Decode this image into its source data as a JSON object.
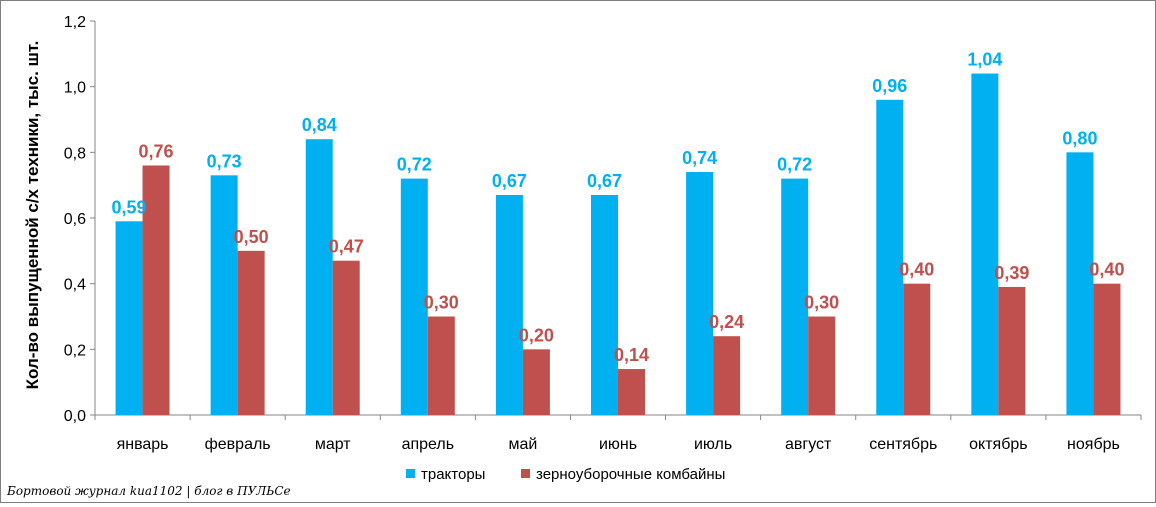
{
  "chart_data": {
    "type": "bar",
    "title": "",
    "xlabel": "",
    "ylabel": "Кол-во выпущенной с/х техники, тыс. шт.",
    "ylim": [
      0,
      1.2
    ],
    "yticks": [
      "0,0",
      "0,2",
      "0,4",
      "0,6",
      "0,8",
      "1,0",
      "1,2"
    ],
    "ytick_values": [
      0,
      0.2,
      0.4,
      0.6,
      0.8,
      1.0,
      1.2
    ],
    "categories": [
      "январь",
      "февраль",
      "март",
      "апрель",
      "май",
      "июнь",
      "июль",
      "август",
      "сентябрь",
      "октябрь",
      "ноябрь"
    ],
    "series": [
      {
        "name": "тракторы",
        "color": "#00B0F0",
        "values": [
          0.59,
          0.73,
          0.84,
          0.72,
          0.67,
          0.67,
          0.74,
          0.72,
          0.96,
          1.04,
          0.8
        ],
        "labels": [
          "0,59",
          "0,73",
          "0,84",
          "0,72",
          "0,67",
          "0,67",
          "0,74",
          "0,72",
          "0,96",
          "1,04",
          "0,80"
        ]
      },
      {
        "name": "зерноуборочные комбайны",
        "color": "#C0504D",
        "values": [
          0.76,
          0.5,
          0.47,
          0.3,
          0.2,
          0.14,
          0.24,
          0.3,
          0.4,
          0.39,
          0.4
        ],
        "labels": [
          "0,76",
          "0,50",
          "0,47",
          "0,30",
          "0,20",
          "0,14",
          "0,24",
          "0,30",
          "0,40",
          "0,39",
          "0,40"
        ]
      }
    ],
    "grid": false,
    "legend_position": "bottom"
  },
  "footer": {
    "credit": "Бортовой журнал kua1102 | блог в ПУЛЬСе"
  }
}
